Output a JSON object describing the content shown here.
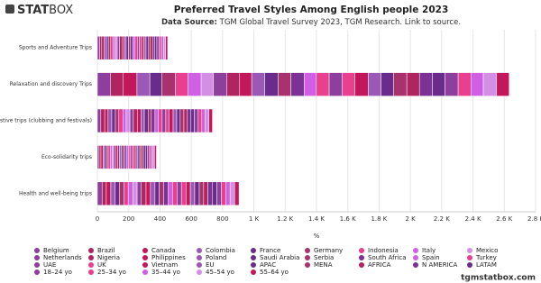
{
  "logo": {
    "bold": "STAT",
    "light": "BOX"
  },
  "footer": "tgmstatbox.com",
  "chart_data": {
    "type": "stacked_barh",
    "title": "Preferred Travel Styles Among English people 2023",
    "source_label": "Data Source:",
    "subtitle": "TGM Global Travel Survey 2023, TGM Research. Link to source.",
    "x_label": "%",
    "categories": [
      "Sports and Adventure Trips",
      "Relaxation and discovery Trips",
      "Festive trips (clubbing and festivals)",
      "Eco-solidarity trips",
      "Health and well-being trips"
    ],
    "xlim": [
      0,
      2800
    ],
    "xticks": [
      0,
      200,
      400,
      600,
      800,
      {
        "value": 1000,
        "label": "1 K"
      },
      {
        "value": 1200,
        "label": "1.2 K"
      },
      {
        "value": 1400,
        "label": "1.4 K"
      },
      {
        "value": 1600,
        "label": "1.6 K"
      },
      {
        "value": 1800,
        "label": "1.8 K"
      },
      {
        "value": 2000,
        "label": "2 K"
      },
      {
        "value": 2200,
        "label": "2.2 K"
      },
      {
        "value": 2400,
        "label": "2.4 K"
      },
      {
        "value": 2600,
        "label": "2.6 K"
      },
      {
        "value": 2800,
        "label": "2.8 K"
      }
    ],
    "series": [
      {
        "name": "Belgium",
        "color": "#8e3f9e",
        "values": [
          15,
          85,
          22,
          11,
          30
        ]
      },
      {
        "name": "Brazil",
        "color": "#b0245f",
        "values": [
          13,
          78,
          25,
          12,
          27
        ]
      },
      {
        "name": "Canada",
        "color": "#c2185b",
        "values": [
          14,
          90,
          21,
          13,
          29
        ]
      },
      {
        "name": "Colombia",
        "color": "#9b59b6",
        "values": [
          16,
          82,
          24,
          10,
          28
        ]
      },
      {
        "name": "France",
        "color": "#6a2c8a",
        "values": [
          12,
          76,
          23,
          12,
          26
        ]
      },
      {
        "name": "Germany",
        "color": "#a8326e",
        "values": [
          15,
          88,
          22,
          11,
          30
        ]
      },
      {
        "name": "Indonesia",
        "color": "#e8408f",
        "values": [
          14,
          80,
          26,
          13,
          27
        ]
      },
      {
        "name": "Italy",
        "color": "#d05fe3",
        "values": [
          13,
          84,
          21,
          12,
          29
        ]
      },
      {
        "name": "Mexico",
        "color": "#d38fe6",
        "values": [
          15,
          79,
          24,
          11,
          28
        ]
      },
      {
        "name": "Netherlands",
        "color": "#8e3f9e",
        "values": [
          14,
          86,
          22,
          12,
          27
        ]
      },
      {
        "name": "Nigeria",
        "color": "#b0245f",
        "values": [
          16,
          81,
          25,
          13,
          30
        ]
      },
      {
        "name": "Philippines",
        "color": "#c2185b",
        "values": [
          13,
          77,
          23,
          11,
          28
        ]
      },
      {
        "name": "Poland",
        "color": "#9b59b6",
        "values": [
          14,
          83,
          22,
          12,
          29
        ]
      },
      {
        "name": "Saudi Arabia",
        "color": "#6a2c8a",
        "values": [
          15,
          87,
          24,
          12,
          27
        ]
      },
      {
        "name": "Serbia",
        "color": "#a8326e",
        "values": [
          13,
          80,
          21,
          11,
          28
        ]
      },
      {
        "name": "South Africa",
        "color": "#7b3294",
        "values": [
          14,
          85,
          23,
          12,
          30
        ]
      },
      {
        "name": "Spain",
        "color": "#d05fe3",
        "values": [
          15,
          78,
          22,
          13,
          27
        ]
      },
      {
        "name": "Turkey",
        "color": "#e8408f",
        "values": [
          14,
          82,
          24,
          11,
          29
        ]
      },
      {
        "name": "UAE",
        "color": "#8e3f9e",
        "values": [
          13,
          84,
          23,
          12,
          28
        ]
      },
      {
        "name": "UK",
        "color": "#e8408f",
        "values": [
          15,
          80,
          22,
          12,
          30
        ]
      },
      {
        "name": "Vietnam",
        "color": "#c2185b",
        "values": [
          14,
          86,
          25,
          11,
          27
        ]
      },
      {
        "name": "EU",
        "color": "#9b59b6",
        "values": [
          14,
          82,
          23,
          12,
          28
        ]
      },
      {
        "name": "APAC",
        "color": "#6a2c8a",
        "values": [
          13,
          79,
          22,
          12,
          29
        ]
      },
      {
        "name": "MENA",
        "color": "#a8326e",
        "values": [
          15,
          85,
          24,
          11,
          28
        ]
      },
      {
        "name": "AFRICA",
        "color": "#b0245f",
        "values": [
          14,
          81,
          22,
          12,
          27
        ]
      },
      {
        "name": "N AMERICA",
        "color": "#7b3294",
        "values": [
          14,
          83,
          23,
          13,
          30
        ]
      },
      {
        "name": "LATAM",
        "color": "#6a2c8a",
        "values": [
          13,
          80,
          22,
          12,
          28
        ]
      },
      {
        "name": "18–24 yo",
        "color": "#8e3f9e",
        "values": [
          15,
          84,
          24,
          11,
          29
        ]
      },
      {
        "name": "25–34 yo",
        "color": "#e8408f",
        "values": [
          14,
          82,
          23,
          12,
          28
        ]
      },
      {
        "name": "35–44 yo",
        "color": "#d05fe3",
        "values": [
          13,
          79,
          22,
          12,
          27
        ]
      },
      {
        "name": "45–54 yo",
        "color": "#d38fe6",
        "values": [
          14,
          85,
          24,
          11,
          29
        ]
      },
      {
        "name": "55–64 yo",
        "color": "#c2185b",
        "values": [
          13,
          80,
          22,
          12,
          28
        ]
      }
    ]
  }
}
